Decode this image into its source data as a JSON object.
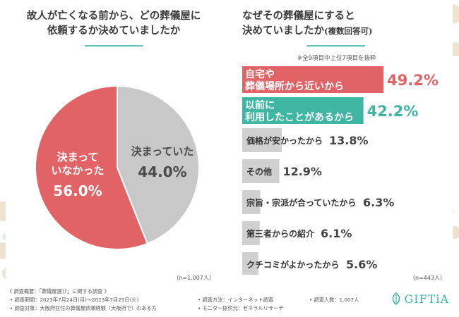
{
  "left": {
    "title_line1": "故人が亡くなる前から、どの葬儀屋に",
    "title_line2": "依頼するか決めていましたか",
    "n_label": "（n=1,007人）"
  },
  "right": {
    "title_line1": "なぜその葬儀屋にすると",
    "title_line2": "決めていましたか",
    "title_suffix": "(複数回答可)",
    "note": "※全9項目中上位7項目を抜粋",
    "n_label": "（n=443人）"
  },
  "chart_data": [
    {
      "type": "pie",
      "title": "故人が亡くなる前から、どの葬儀屋に依頼するか決めていましたか",
      "slices": [
        {
          "label_lines": [
            "決まって",
            "いなかった"
          ],
          "value": 56.0,
          "value_label": "56.0%",
          "color": "#e26365"
        },
        {
          "label_lines": [
            "決まっていた"
          ],
          "value": 44.0,
          "value_label": "44.0%",
          "color": "#c8c8c8"
        }
      ],
      "n": "n=1,007人"
    },
    {
      "type": "bar",
      "orientation": "horizontal",
      "title": "なぜその葬儀屋にすると決めていましたか(複数回答可)",
      "max": 60,
      "bars": [
        {
          "label_lines": [
            "自宅や",
            "葬儀場所から近いから"
          ],
          "value": 49.2,
          "value_label": "49.2%",
          "color": "#e26365",
          "highlight": true
        },
        {
          "label_lines": [
            "以前に",
            "利用したことがあるから"
          ],
          "value": 42.2,
          "value_label": "42.2%",
          "color": "#3fb6a4",
          "highlight": true
        },
        {
          "label_lines": [
            "価格が安かったから"
          ],
          "value": 13.8,
          "value_label": "13.8%",
          "color": "#d0d0d0",
          "highlight": false
        },
        {
          "label_lines": [
            "その他"
          ],
          "value": 12.9,
          "value_label": "12.9%",
          "color": "#d0d0d0",
          "highlight": false
        },
        {
          "label_lines": [
            "宗旨・宗派が合っていたから"
          ],
          "value": 6.3,
          "value_label": "6.3%",
          "color": "#d0d0d0",
          "highlight": false
        },
        {
          "label_lines": [
            "第三者からの紹介"
          ],
          "value": 6.1,
          "value_label": "6.1%",
          "color": "#d0d0d0",
          "highlight": false
        },
        {
          "label_lines": [
            "クチコミがよかったから"
          ],
          "value": 5.6,
          "value_label": "5.6%",
          "color": "#d0d0d0",
          "highlight": false
        }
      ],
      "n": "n=443人"
    }
  ],
  "footer": {
    "heading": "《 調査概要：「葬儀屋選び」に関する調査 》",
    "period": "• 調査期間：2023年7月24日(月)～2023年7月25日(火)",
    "target": "• 調査対象：大阪府在住の葬儀屋依頼経験（大阪府で）のある方",
    "method": "• 調査方法：インターネット調査",
    "provider": "• モニター提供元：ゼネラルリサーチ",
    "count": "• 調査人数：1,007人",
    "brand": "GIFTiA"
  },
  "colors": {
    "accent_red": "#e26365",
    "accent_teal": "#3fb6a4",
    "gray": "#c8c8c8"
  }
}
